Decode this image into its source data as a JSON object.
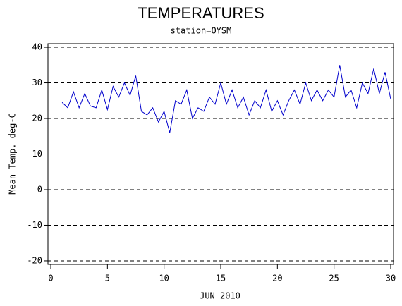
{
  "chart_data": {
    "type": "line",
    "title": "TEMPERATURES",
    "subtitle": "station=OYSM",
    "x_label": "JUN 2010",
    "y_label": "Mean Temp. deg-C",
    "x": [
      1,
      1.5,
      2,
      2.5,
      3,
      3.5,
      4,
      4.5,
      5,
      5.5,
      6,
      6.5,
      7,
      7.5,
      8,
      8.5,
      9,
      9.5,
      10,
      10.5,
      11,
      11.5,
      12,
      12.5,
      13,
      13.5,
      14,
      14.5,
      15,
      15.5,
      16,
      16.5,
      17,
      17.5,
      18,
      18.5,
      19,
      19.5,
      20,
      20.5,
      21,
      21.5,
      22,
      22.5,
      23,
      23.5,
      24,
      24.5,
      25,
      25.5,
      26,
      26.5,
      27,
      27.5,
      28,
      28.5,
      29,
      29.5,
      30
    ],
    "series": [
      {
        "name": "Mean Temp. deg-C",
        "color": "#0000cc",
        "values": [
          24.5,
          23,
          27.5,
          23,
          27,
          23.5,
          23,
          28,
          22.5,
          29,
          26,
          30,
          26.5,
          32,
          22,
          21,
          23,
          19,
          22,
          16,
          25,
          24,
          28,
          20,
          23,
          22,
          26,
          24,
          30,
          24,
          28,
          23,
          26,
          21,
          25,
          23,
          28,
          22,
          25,
          21,
          25,
          28,
          24,
          30,
          25,
          28,
          25,
          28,
          26,
          35,
          26,
          28,
          23,
          30,
          27,
          34,
          27,
          33,
          25.5
        ]
      }
    ],
    "xlim": [
      -0.25,
      30.25
    ],
    "ylim": [
      -21,
      41
    ],
    "xticks": [
      0,
      5,
      10,
      15,
      20,
      25,
      30
    ],
    "yticks": [
      -20,
      -10,
      0,
      10,
      20,
      30,
      40
    ],
    "grid": true
  }
}
